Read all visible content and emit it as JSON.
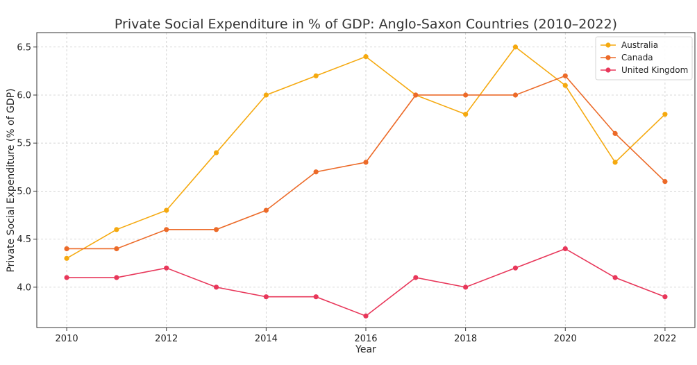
{
  "chart_data": {
    "type": "line",
    "title": "Private Social Expenditure in % of GDP: Anglo-Saxon Countries (2010–2022)",
    "xlabel": "Year",
    "ylabel": "Private Social Expenditure (% of GDP)",
    "x": [
      2010,
      2011,
      2012,
      2013,
      2014,
      2015,
      2016,
      2017,
      2018,
      2019,
      2020,
      2021,
      2022
    ],
    "xticks": [
      "2010",
      "2012",
      "2014",
      "2016",
      "2018",
      "2020",
      "2022"
    ],
    "yticks": [
      "4.0",
      "4.5",
      "5.0",
      "5.5",
      "6.0",
      "6.5"
    ],
    "xlim": [
      2009.4,
      2022.6
    ],
    "ylim": [
      3.58,
      6.65
    ],
    "grid": true,
    "legend_position": "top-right",
    "series": [
      {
        "name": "Australia",
        "color": "#f5a90f",
        "values": [
          4.3,
          4.6,
          4.8,
          5.4,
          6.0,
          6.2,
          6.4,
          6.0,
          5.8,
          6.5,
          6.1,
          5.3,
          5.8
        ]
      },
      {
        "name": "Canada",
        "color": "#ec6a28",
        "values": [
          4.4,
          4.4,
          4.6,
          4.6,
          4.8,
          5.2,
          5.3,
          6.0,
          6.0,
          6.0,
          6.2,
          5.6,
          5.1
        ]
      },
      {
        "name": "United Kingdom",
        "color": "#e8375a",
        "values": [
          4.1,
          4.1,
          4.2,
          4.0,
          3.9,
          3.9,
          3.7,
          4.1,
          4.0,
          4.2,
          4.4,
          4.1,
          3.9
        ]
      }
    ]
  }
}
